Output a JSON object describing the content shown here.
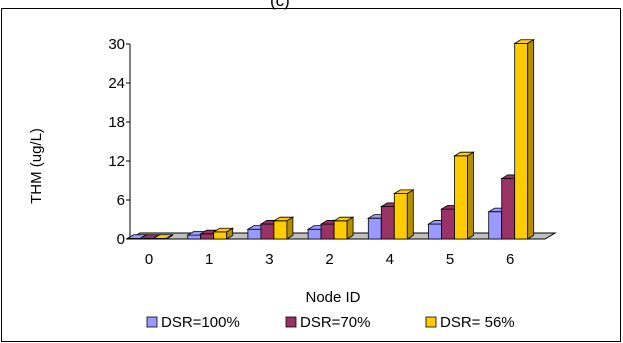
{
  "top_text": "(c)",
  "colors": {
    "DSR=100%": "#9999ff",
    "DSR=70%": "#993366",
    "DSR= 56%": "#ffcc00"
  },
  "chart_data": {
    "type": "bar",
    "categories": [
      "0",
      "1",
      "3",
      "2",
      "4",
      "5",
      "6"
    ],
    "series": [
      {
        "name": "DSR=100%",
        "values": [
          0.1,
          0.6,
          1.5,
          1.5,
          3.2,
          2.3,
          4.2
        ]
      },
      {
        "name": "DSR=70%",
        "values": [
          0.1,
          0.8,
          2.3,
          2.3,
          5.0,
          4.6,
          9.3
        ]
      },
      {
        "name": "DSR= 56%",
        "values": [
          0.1,
          1.1,
          2.8,
          2.8,
          7.0,
          12.8,
          30.1
        ]
      }
    ],
    "xlabel": "Node ID",
    "ylabel": "THM (ug/L)",
    "yticks": [
      "0",
      "6",
      "12",
      "18",
      "24",
      "30"
    ],
    "ylim": [
      0,
      30
    ],
    "grid": false,
    "legend": "bottom",
    "projection": "3d-perspective"
  }
}
